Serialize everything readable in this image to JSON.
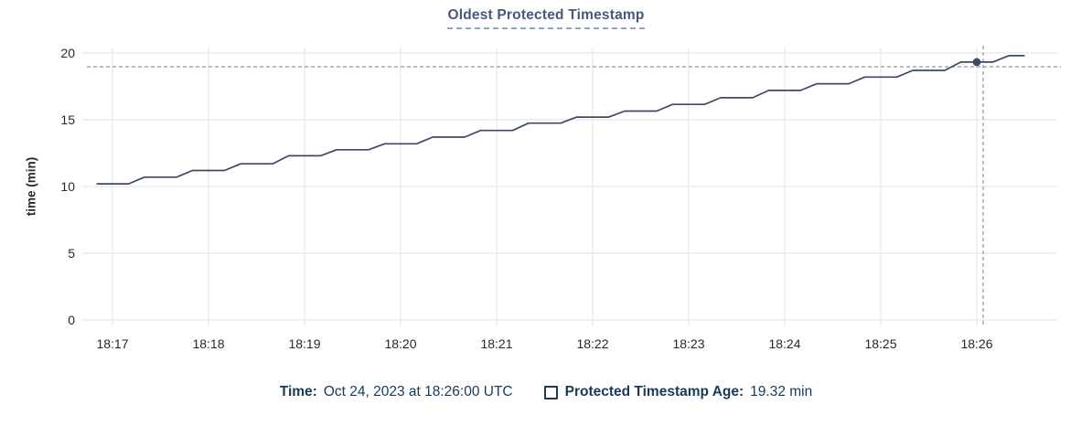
{
  "title": "Oldest Protected Timestamp",
  "y_axis_label": "time (min)",
  "legend": {
    "time_label": "Time:",
    "time_value": "Oct 24, 2023 at 18:26:00 UTC",
    "checkbox_icon": "unchecked-square-icon",
    "series_label": "Protected Timestamp Age:",
    "series_value": "19.32 min"
  },
  "chart_data": {
    "type": "line",
    "title": "Oldest Protected Timestamp",
    "xlabel": "",
    "ylabel": "time (min)",
    "ylim": [
      0,
      20
    ],
    "y_ticks": [
      0,
      5,
      10,
      15,
      20
    ],
    "x_ticks": [
      "18:17",
      "18:18",
      "18:19",
      "18:20",
      "18:21",
      "18:22",
      "18:23",
      "18:24",
      "18:25",
      "18:26"
    ],
    "x_tick_interval_seconds": 60,
    "grid": true,
    "legend_position": "bottom",
    "series": [
      {
        "name": "Protected Timestamp Age",
        "unit": "min",
        "t0_seconds_after_18_17": -10,
        "dt_seconds": 10,
        "values": [
          10.2,
          10.2,
          10.2,
          10.7,
          10.7,
          10.7,
          11.2,
          11.2,
          11.2,
          11.7,
          11.7,
          11.7,
          12.3,
          12.3,
          12.3,
          12.75,
          12.75,
          12.75,
          13.2,
          13.2,
          13.2,
          13.7,
          13.7,
          13.7,
          14.2,
          14.2,
          14.2,
          14.75,
          14.75,
          14.75,
          15.2,
          15.2,
          15.2,
          15.65,
          15.65,
          15.65,
          16.15,
          16.15,
          16.15,
          16.65,
          16.65,
          16.65,
          17.2,
          17.2,
          17.2,
          17.7,
          17.7,
          17.7,
          18.2,
          18.2,
          18.2,
          18.7,
          18.7,
          18.7,
          19.32,
          19.32,
          19.32,
          19.8,
          19.8
        ]
      }
    ],
    "hover": {
      "time": "Oct 24, 2023 at 18:26:00 UTC",
      "x_tick": "18:26",
      "point_t_seconds_after_18_17": 540,
      "point_value": 19.32,
      "crosshair_t_seconds_after_18_17": 544,
      "crosshair_value": 18.97
    },
    "colors": {
      "line": "#3b4b63",
      "point": "#3b4b63",
      "grid": "#eaebee",
      "crosshair": "#8ca4b0",
      "tick_text": "#24292e",
      "title": "#48587a",
      "legend_text": "#163a5c"
    }
  }
}
